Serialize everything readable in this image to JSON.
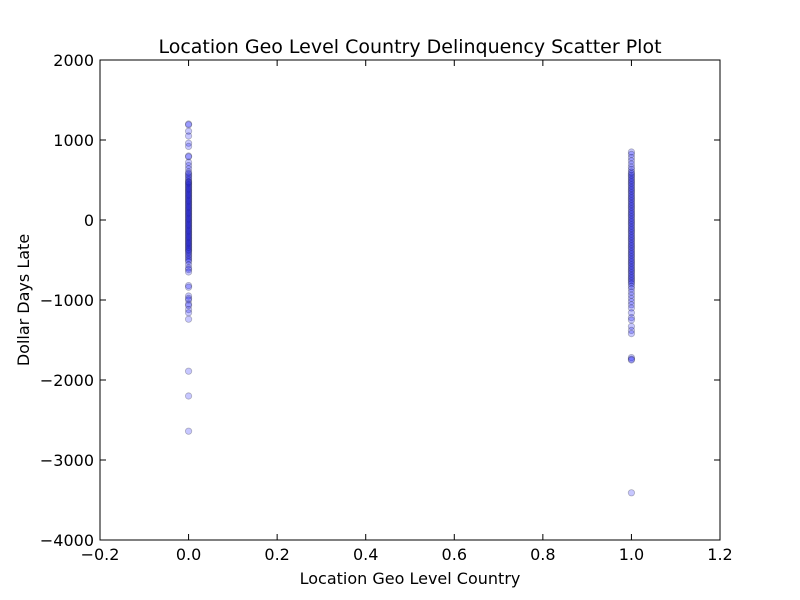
{
  "chart_data": {
    "type": "scatter",
    "title": "Location Geo Level Country Delinquency Scatter Plot",
    "xlabel": "Location Geo Level Country",
    "ylabel": "Dollar Days Late",
    "xlim": [
      -0.2,
      1.2
    ],
    "ylim": [
      -4000,
      2000
    ],
    "x_ticks": [
      -0.2,
      0.0,
      0.2,
      0.4,
      0.6,
      0.8,
      1.0,
      1.2
    ],
    "x_tick_labels": [
      "−0.2",
      "0.0",
      "0.2",
      "0.4",
      "0.6",
      "0.8",
      "1.0",
      "1.2"
    ],
    "y_ticks": [
      2000,
      1000,
      0,
      -1000,
      -2000,
      -3000,
      -4000
    ],
    "y_tick_labels": [
      "2000",
      "1000",
      "0",
      "−1000",
      "−2000",
      "−3000",
      "−4000"
    ],
    "grid": false,
    "point_color": "#0000ff",
    "point_opacity": 0.22,
    "series": [
      {
        "x": 0,
        "y": [
          1200,
          1190,
          1110,
          1050,
          960,
          920,
          800,
          790,
          720,
          680,
          640,
          600,
          580,
          560,
          540,
          520,
          500,
          480,
          470,
          455,
          440,
          425,
          410,
          395,
          380,
          365,
          350,
          335,
          320,
          305,
          290,
          275,
          260,
          245,
          230,
          215,
          200,
          185,
          170,
          155,
          140,
          125,
          110,
          95,
          80,
          65,
          50,
          35,
          20,
          5,
          -10,
          -25,
          -40,
          -55,
          -70,
          -85,
          -100,
          -115,
          -130,
          -145,
          -160,
          -175,
          -190,
          -205,
          -220,
          -235,
          -250,
          -265,
          -280,
          -295,
          -310,
          -325,
          -340,
          -355,
          -370,
          -385,
          -400,
          -420,
          -440,
          -460,
          -480,
          -500,
          -520,
          -560,
          -600,
          -620,
          -650,
          -820,
          -840,
          -950,
          -980,
          -1000,
          -1050,
          -1070,
          -1120,
          -1160,
          -1240,
          -1890,
          -2200,
          -2640
        ]
      },
      {
        "x": 1,
        "y": [
          850,
          820,
          780,
          740,
          700,
          660,
          630,
          600,
          580,
          560,
          540,
          520,
          500,
          480,
          460,
          440,
          420,
          400,
          380,
          360,
          340,
          320,
          300,
          280,
          260,
          240,
          220,
          200,
          180,
          160,
          140,
          120,
          100,
          80,
          60,
          40,
          20,
          0,
          -20,
          -40,
          -60,
          -80,
          -100,
          -120,
          -140,
          -160,
          -180,
          -200,
          -220,
          -240,
          -260,
          -280,
          -300,
          -320,
          -340,
          -360,
          -380,
          -400,
          -420,
          -440,
          -460,
          -480,
          -500,
          -520,
          -540,
          -560,
          -580,
          -600,
          -620,
          -640,
          -660,
          -680,
          -700,
          -720,
          -740,
          -760,
          -780,
          -800,
          -830,
          -860,
          -900,
          -940,
          -980,
          -1020,
          -1060,
          -1100,
          -1160,
          -1220,
          -1250,
          -1330,
          -1380,
          -1420,
          -1720,
          -1740,
          -1750,
          -3410
        ]
      }
    ]
  }
}
